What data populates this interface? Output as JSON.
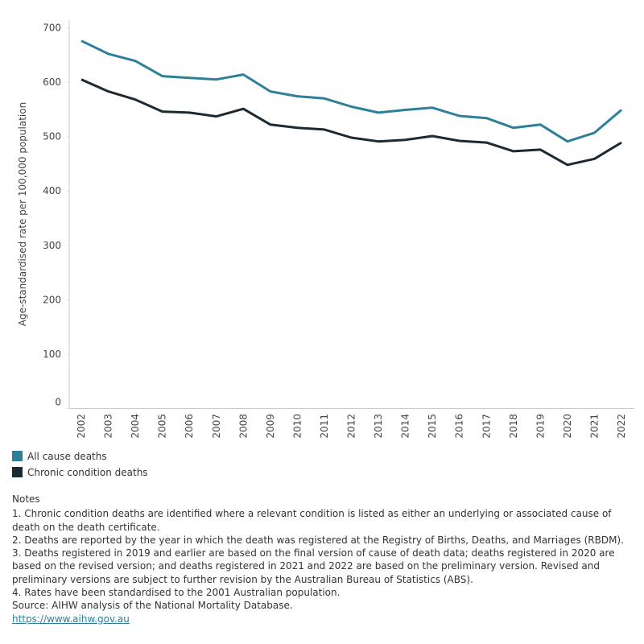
{
  "chart_data": {
    "type": "line",
    "y_label": "Age-standardised rate per 100,000 population",
    "categories": [
      "2002",
      "2003",
      "2004",
      "2005",
      "2006",
      "2007",
      "2008",
      "2009",
      "2010",
      "2011",
      "2012",
      "2013",
      "2014",
      "2015",
      "2016",
      "2017",
      "2018",
      "2019",
      "2020",
      "2021",
      "2022"
    ],
    "series": [
      {
        "name": "All cause deaths",
        "color": "#2e7f9a",
        "values": [
          676,
          652,
          639,
          611,
          608,
          605,
          614,
          583,
          574,
          570,
          555,
          544,
          549,
          553,
          538,
          534,
          516,
          522,
          491,
          507,
          549
        ]
      },
      {
        "name": "Chronic condition deaths",
        "color": "#1b2a33",
        "values": [
          605,
          583,
          568,
          546,
          544,
          537,
          551,
          522,
          516,
          513,
          498,
          491,
          494,
          501,
          492,
          489,
          473,
          476,
          448,
          459,
          489
        ]
      }
    ],
    "ylim": [
      0,
      700
    ],
    "yticks": [
      0,
      100,
      200,
      300,
      400,
      500,
      600,
      700
    ],
    "grid": false
  },
  "notes": {
    "heading": "Notes",
    "lines": [
      "1. Chronic condition deaths are identified where a relevant condition is listed as either an underlying or associated cause of death on the death certificate.",
      "2. Deaths are reported by the year in which the death was registered at the Registry of Births, Deaths, and Marriages (RBDM).",
      "3. Deaths registered in 2019 and earlier are based on the final version of cause of death data; deaths registered in 2020 are based on the revised version; and deaths registered in 2021 and 2022 are based on the preliminary version. Revised and preliminary versions are subject to further revision by the Australian Bureau of Statistics (ABS).",
      "4. Rates have been standardised to the 2001 Australian population.",
      "Source: AIHW analysis of the National Mortality Database."
    ],
    "link": "https://www.aihw.gov.au"
  }
}
